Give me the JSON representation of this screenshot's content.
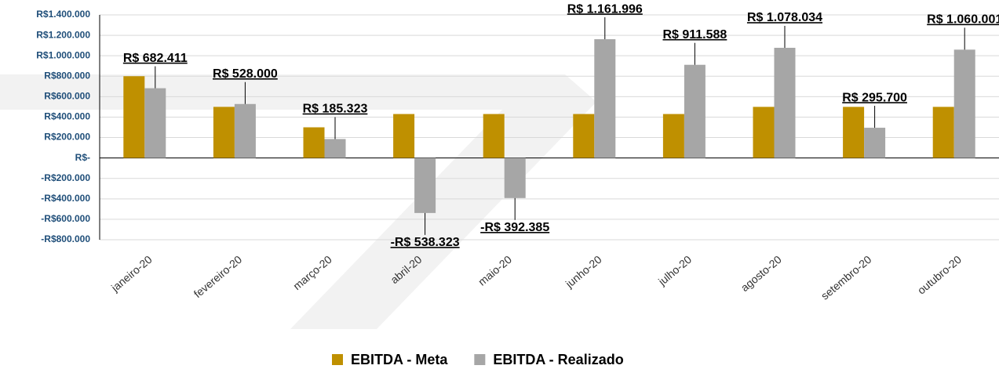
{
  "chart_data": {
    "type": "bar",
    "categories": [
      "janeiro-20",
      "fevereiro-20",
      "março-20",
      "abril-20",
      "maio-20",
      "junho-20",
      "julho-20",
      "agosto-20",
      "setembro-20",
      "outubro-20"
    ],
    "series": [
      {
        "name": "EBITDA - Meta",
        "color": "#bf9000",
        "values": [
          800000,
          500000,
          300000,
          430000,
          430000,
          430000,
          430000,
          500000,
          500000,
          500000
        ]
      },
      {
        "name": "EBITDA - Realizado",
        "color": "#a6a6a6",
        "values": [
          682411,
          528000,
          185323,
          -538323,
          -392385,
          1161996,
          911588,
          1078034,
          295700,
          1060001
        ],
        "value_labels": [
          "R$ 682.411",
          "R$ 528.000",
          "R$ 185.323",
          "-R$ 538.323",
          "-R$ 392.385",
          "R$ 1.161.996",
          "R$ 911.588",
          "R$ 1.078.034",
          "R$ 295.700",
          "R$ 1.060.001"
        ]
      }
    ],
    "ylim": [
      -800000,
      1400000
    ],
    "yticks": [
      {
        "value": -800000,
        "label": "-R$800.000"
      },
      {
        "value": -600000,
        "label": "-R$600.000"
      },
      {
        "value": -400000,
        "label": "-R$400.000"
      },
      {
        "value": -200000,
        "label": "-R$200.000"
      },
      {
        "value": 0,
        "label": "R$-"
      },
      {
        "value": 200000,
        "label": "R$200.000"
      },
      {
        "value": 400000,
        "label": "R$400.000"
      },
      {
        "value": 600000,
        "label": "R$600.000"
      },
      {
        "value": 800000,
        "label": "R$800.000"
      },
      {
        "value": 1000000,
        "label": "R$1.000.000"
      },
      {
        "value": 1200000,
        "label": "R$1.200.000"
      },
      {
        "value": 1400000,
        "label": "R$1.400.000"
      }
    ],
    "grid": true
  }
}
